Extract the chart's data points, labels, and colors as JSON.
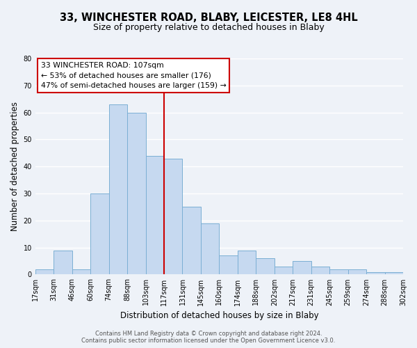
{
  "title": "33, WINCHESTER ROAD, BLABY, LEICESTER, LE8 4HL",
  "subtitle": "Size of property relative to detached houses in Blaby",
  "xlabel": "Distribution of detached houses by size in Blaby",
  "ylabel": "Number of detached properties",
  "bar_labels": [
    "17sqm",
    "31sqm",
    "46sqm",
    "60sqm",
    "74sqm",
    "88sqm",
    "103sqm",
    "117sqm",
    "131sqm",
    "145sqm",
    "160sqm",
    "174sqm",
    "188sqm",
    "202sqm",
    "217sqm",
    "231sqm",
    "245sqm",
    "259sqm",
    "274sqm",
    "288sqm",
    "302sqm"
  ],
  "bar_values": [
    2,
    9,
    2,
    30,
    63,
    60,
    44,
    43,
    25,
    19,
    7,
    9,
    6,
    3,
    5,
    3,
    2,
    2,
    1,
    1
  ],
  "bar_color": "#c6d9f0",
  "bar_edgecolor": "#7bafd4",
  "vline_color": "#cc0000",
  "annotation_title": "33 WINCHESTER ROAD: 107sqm",
  "annotation_line1": "← 53% of detached houses are smaller (176)",
  "annotation_line2": "47% of semi-detached houses are larger (159) →",
  "annotation_box_color": "#ffffff",
  "annotation_box_edgecolor": "#cc0000",
  "ylim": [
    0,
    80
  ],
  "yticks": [
    0,
    10,
    20,
    30,
    40,
    50,
    60,
    70,
    80
  ],
  "footer1": "Contains HM Land Registry data © Crown copyright and database right 2024.",
  "footer2": "Contains public sector information licensed under the Open Government Licence v3.0.",
  "background_color": "#eef2f8",
  "grid_color": "#ffffff",
  "title_fontsize": 10.5,
  "subtitle_fontsize": 9,
  "axis_label_fontsize": 8.5,
  "tick_fontsize": 7,
  "annotation_fontsize": 7.8,
  "footer_fontsize": 6
}
